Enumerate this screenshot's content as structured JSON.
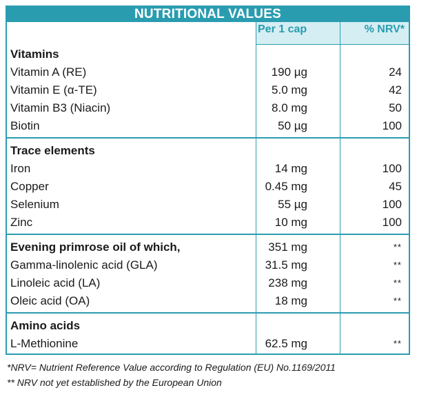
{
  "title": "NUTRITIONAL VALUES",
  "columns": {
    "per_cap": "Per 1 cap",
    "nrv": "% NRV*"
  },
  "sections": [
    {
      "heading": "Vitamins",
      "rows": [
        {
          "name": "Vitamin A (RE)",
          "amount": "190 µg",
          "nrv": "24"
        },
        {
          "name": "Vitamin E (α-TE)",
          "amount": "5.0 mg",
          "nrv": "42"
        },
        {
          "name": "Vitamin B3 (Niacin)",
          "amount": "8.0 mg",
          "nrv": "50"
        },
        {
          "name": "Biotin",
          "amount": "50 µg",
          "nrv": "100"
        }
      ]
    },
    {
      "heading": "Trace elements",
      "rows": [
        {
          "name": "Iron",
          "amount": "14 mg",
          "nrv": "100"
        },
        {
          "name": "Copper",
          "amount": "0.45 mg",
          "nrv": "45"
        },
        {
          "name": "Selenium",
          "amount": "55 µg",
          "nrv": "100"
        },
        {
          "name": "Zinc",
          "amount": "10 mg",
          "nrv": "100"
        }
      ]
    },
    {
      "heading": "Evening primrose oil  of which,",
      "heading_amount": "351 mg",
      "heading_nrv": "**",
      "rows": [
        {
          "name": "Gamma-linolenic acid (GLA)",
          "amount": "31.5 mg",
          "nrv": "**"
        },
        {
          "name": "Linoleic acid (LA)",
          "amount": "238 mg",
          "nrv": "**"
        },
        {
          "name": "Oleic acid (OA)",
          "amount": "18 mg",
          "nrv": "**"
        }
      ]
    },
    {
      "heading": "Amino acids",
      "rows": [
        {
          "name": "L-Methionine",
          "amount": "62.5 mg",
          "nrv": "**"
        }
      ]
    }
  ],
  "footnotes": [
    "*NRV= Nutrient Reference Value according to Regulation (EU) No.1169/2011",
    "** NRV not yet established by the European Union"
  ]
}
